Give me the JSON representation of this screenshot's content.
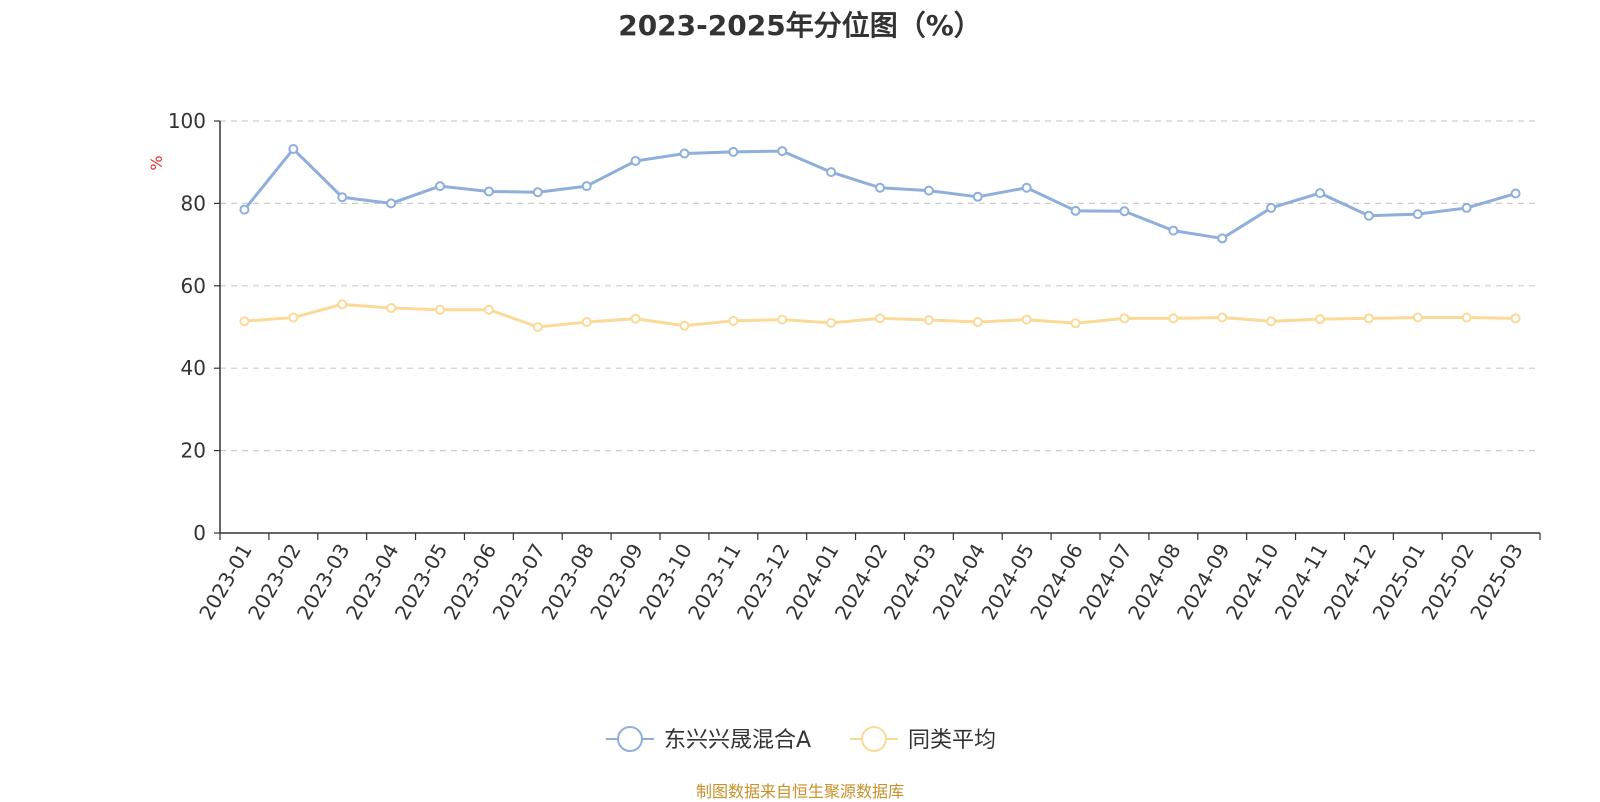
{
  "chart_data": {
    "type": "line",
    "title": "2023-2025年分位图（%）",
    "ylabel": "%",
    "xlabel": "",
    "ylim": [
      0,
      100
    ],
    "yticks": [
      0,
      20,
      40,
      60,
      80,
      100
    ],
    "grid": true,
    "legend_position": "bottom",
    "categories": [
      "2023-01",
      "2023-02",
      "2023-03",
      "2023-04",
      "2023-05",
      "2023-06",
      "2023-07",
      "2023-08",
      "2023-09",
      "2023-10",
      "2023-11",
      "2023-12",
      "2024-01",
      "2024-02",
      "2024-03",
      "2024-04",
      "2024-05",
      "2024-06",
      "2024-07",
      "2024-08",
      "2024-09",
      "2024-10",
      "2024-11",
      "2024-12",
      "2025-01",
      "2025-02",
      "2025-03"
    ],
    "series": [
      {
        "name": "东兴兴晟混合A",
        "color": "#8eaedb",
        "values": [
          78.5,
          93.2,
          81.5,
          80.0,
          84.2,
          82.9,
          82.7,
          84.2,
          90.3,
          92.1,
          92.5,
          92.7,
          87.6,
          83.8,
          83.1,
          81.6,
          83.8,
          78.2,
          78.1,
          73.4,
          71.5,
          78.9,
          82.5,
          77.0,
          77.4,
          78.9,
          82.4
        ]
      },
      {
        "name": "同类平均",
        "color": "#fbd998",
        "values": [
          51.4,
          52.3,
          55.5,
          54.6,
          54.2,
          54.2,
          50.0,
          51.2,
          52.0,
          50.3,
          51.5,
          51.8,
          51.0,
          52.1,
          51.7,
          51.2,
          51.8,
          50.9,
          52.1,
          52.1,
          52.3,
          51.4,
          51.9,
          52.1,
          52.3,
          52.3,
          52.1
        ]
      }
    ]
  },
  "footer": {
    "source": "制图数据来自恒生聚源数据库"
  }
}
